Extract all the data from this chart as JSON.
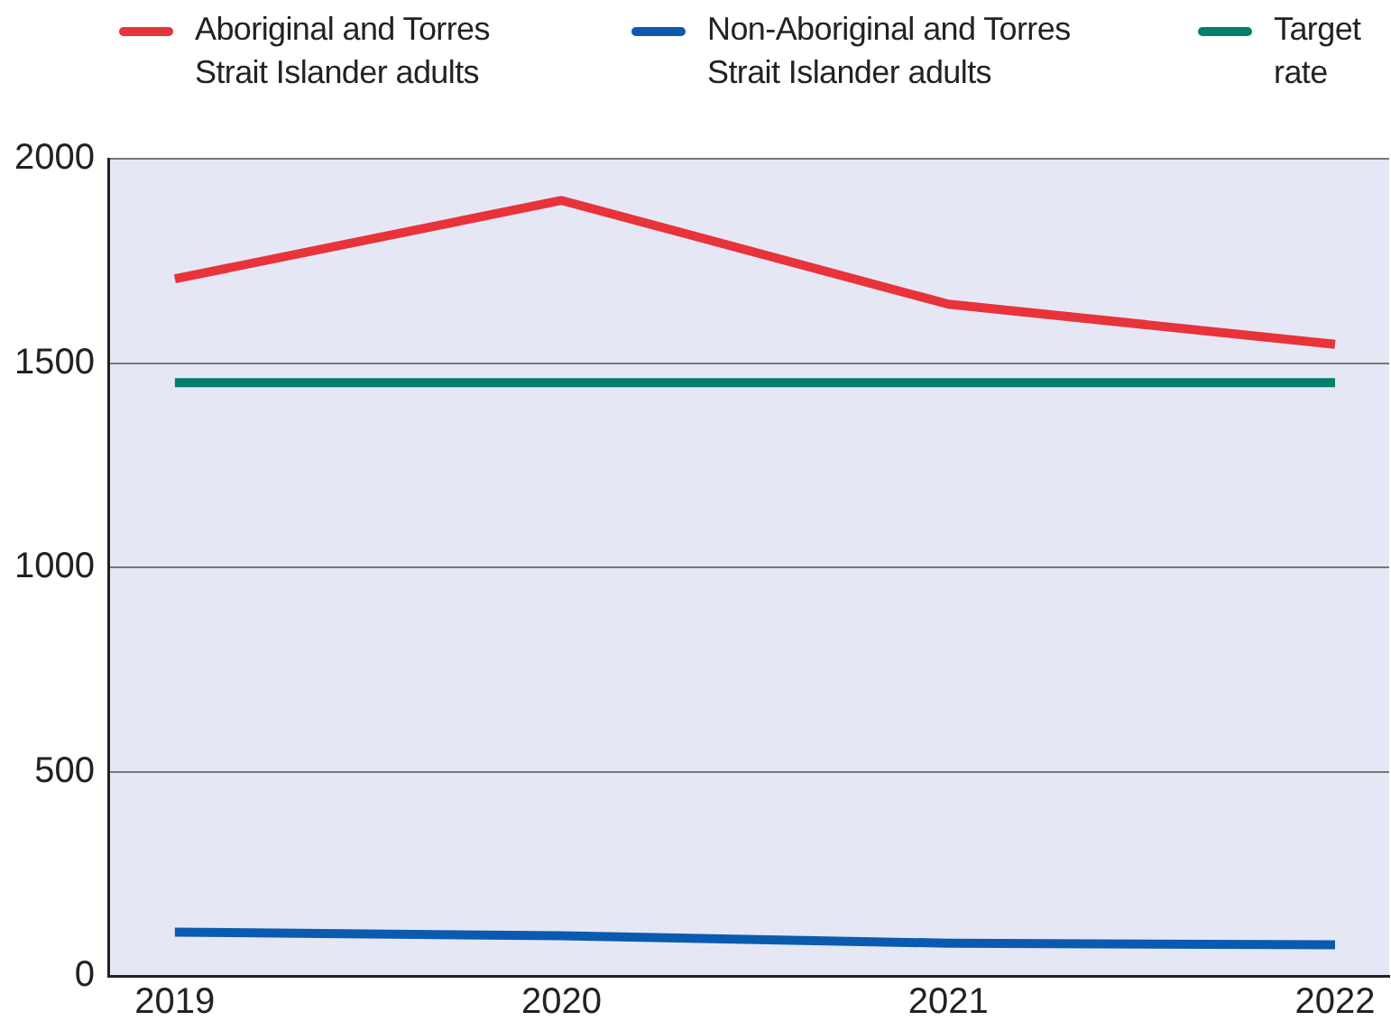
{
  "chart_data": {
    "type": "line",
    "x": [
      2019,
      2020,
      2021,
      2022
    ],
    "xlim": [
      2018.83,
      2022.14
    ],
    "xticks": [
      2019,
      2020,
      2021,
      2022
    ],
    "ylim": [
      0,
      2000
    ],
    "yticks": [
      0,
      500,
      1000,
      1500,
      2000
    ],
    "grid": "y",
    "legend": "top",
    "marker": "none",
    "line_style": "solid",
    "series": [
      {
        "name": "Aboriginal and Torres Strait Islander adults",
        "color": "#e8333a",
        "values": [
          1706,
          1898,
          1644,
          1546
        ]
      },
      {
        "name": "Non-Aboriginal and Torres Strait Islander adults",
        "color": "#0a5bb0",
        "values": [
          107,
          98,
          80,
          76
        ]
      },
      {
        "name": "Target rate",
        "color": "#00806a",
        "values": [
          1452,
          1452,
          1452,
          1452
        ]
      }
    ]
  }
}
